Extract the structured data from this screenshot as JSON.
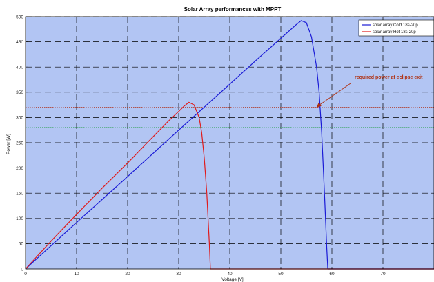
{
  "chart_data": {
    "type": "line",
    "title": "Solar Array performances with MPPT",
    "xlabel": "Voltage [V]",
    "ylabel": "Power [W]",
    "xlim": [
      0,
      80
    ],
    "ylim": [
      0,
      500
    ],
    "xticks": [
      0,
      10,
      20,
      30,
      40,
      50,
      60,
      70
    ],
    "yticks": [
      0,
      50,
      100,
      150,
      200,
      250,
      300,
      350,
      400,
      450,
      500
    ],
    "grid": true,
    "legend_position": "top-right",
    "background_color": "#b2c5f3",
    "series": [
      {
        "name": "solar array Cold 18s-20p",
        "color": "#1a1ad6",
        "x": [
          0,
          10,
          20,
          30,
          40,
          45,
          50,
          52,
          53,
          54,
          55,
          56,
          57,
          57.5,
          58,
          58.5,
          59,
          59.2,
          80
        ],
        "y": [
          0,
          92,
          183,
          275,
          366,
          412,
          457,
          475,
          484,
          492,
          488,
          460,
          400,
          350,
          270,
          160,
          40,
          0,
          0
        ]
      },
      {
        "name": "solar array Hot 18s-20p",
        "color": "#e01a1a",
        "x": [
          0,
          5,
          10,
          15,
          20,
          25,
          28,
          30,
          31,
          32,
          33,
          34,
          34.5,
          35,
          35.5,
          36,
          36.2,
          80
        ],
        "y": [
          0,
          55,
          108,
          160,
          210,
          262,
          293,
          312,
          322,
          330,
          325,
          300,
          270,
          220,
          150,
          50,
          0,
          0
        ]
      }
    ],
    "reference_lines": [
      {
        "y": 320,
        "color": "#b0301a",
        "style": "dotted"
      },
      {
        "y": 280,
        "color": "#1a9a3a",
        "style": "dotted"
      }
    ],
    "annotations": [
      {
        "text": "required power at eclipse exit",
        "color": "#b03010",
        "arrow_to": [
          57,
          320
        ]
      }
    ]
  }
}
